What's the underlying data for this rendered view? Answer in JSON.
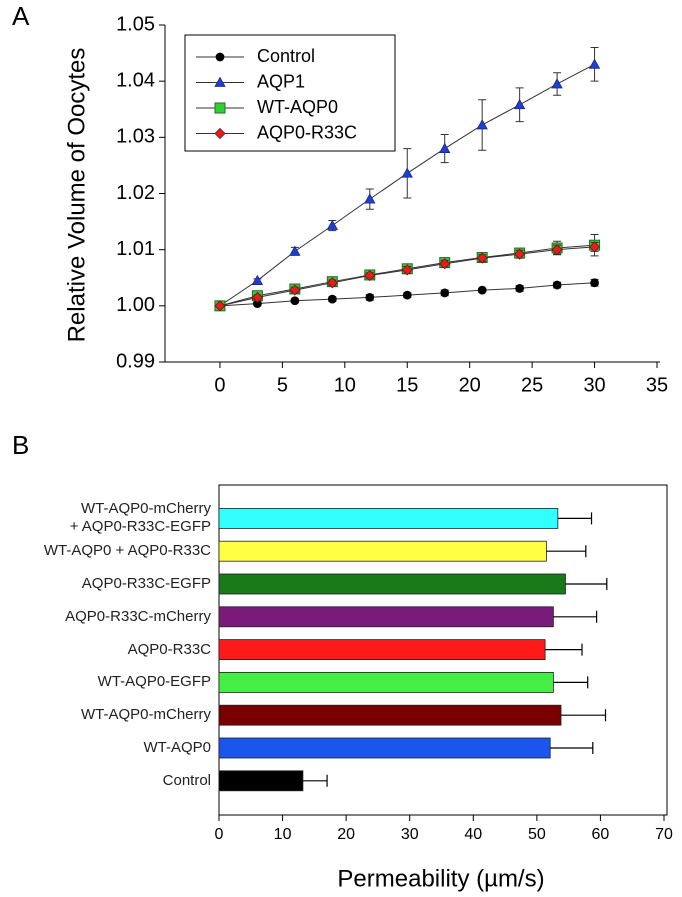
{
  "chart_data": [
    {
      "type": "line",
      "panel_label": "A",
      "ylabel": "Relative Volume of Oocytes",
      "x": [
        0,
        3,
        6,
        9,
        12,
        15,
        18,
        21,
        24,
        27,
        30
      ],
      "xlim": [
        -4.4,
        35
      ],
      "xticks": [
        0,
        5,
        10,
        15,
        20,
        25,
        30,
        35
      ],
      "ylim": [
        0.99,
        1.05
      ],
      "yticks": [
        0.99,
        {
          "value": 1.0,
          "label": "1.00"
        },
        1.01,
        1.02,
        1.03,
        1.04,
        1.05
      ],
      "legend": "upper left",
      "series": [
        {
          "name": "Control",
          "color": "#000000",
          "marker": "circle",
          "values": [
            1.0,
            1.0004,
            1.0009,
            1.0012,
            1.0015,
            1.0019,
            1.0023,
            1.0028,
            1.0031,
            1.0037,
            1.0041
          ],
          "errors": [
            0,
            0.0003,
            0.0003,
            0.0004,
            0.0005,
            0.0004,
            0.0005,
            0.0003,
            0.0005,
            0.0005,
            0.0006
          ]
        },
        {
          "name": "AQP1",
          "color": "#1f3fcf",
          "marker": "triangle",
          "values": [
            1.0,
            1.0045,
            1.0097,
            1.0143,
            1.019,
            1.0236,
            1.028,
            1.0322,
            1.0358,
            1.0395,
            1.043
          ],
          "errors": [
            0,
            0.0003,
            0.0007,
            0.0009,
            0.0018,
            0.0044,
            0.0025,
            0.0045,
            0.003,
            0.002,
            0.003
          ]
        },
        {
          "name": "WT-AQP0",
          "color": "#33cc33",
          "marker": "square",
          "values": [
            1.0,
            1.0018,
            1.003,
            1.0043,
            1.0055,
            1.0066,
            1.0077,
            1.0086,
            1.0094,
            1.0103,
            1.0108
          ],
          "errors": [
            0,
            0.0005,
            0.0005,
            0.0006,
            0.0006,
            0.0006,
            0.0007,
            0.0007,
            0.0008,
            0.0012,
            0.0019
          ]
        },
        {
          "name": "AQP0-R33C",
          "color": "#e02020",
          "marker": "diamond",
          "values": [
            1.0,
            1.0015,
            1.0028,
            1.0041,
            1.0054,
            1.0064,
            1.0075,
            1.0085,
            1.0092,
            1.01,
            1.0105
          ],
          "errors": [
            0,
            0.0004,
            0.0005,
            0.0005,
            0.0005,
            0.0006,
            0.0006,
            0.0006,
            0.0007,
            0.0008,
            0.0008
          ]
        }
      ]
    },
    {
      "type": "bar",
      "orientation": "horizontal",
      "panel_label": "B",
      "xlabel": "Permeability (µm/s)",
      "categories": [
        "WT-AQP0-mCherry\n+ AQP0-R33C-EGFP",
        "WT-AQP0 + AQP0-R33C",
        "AQP0-R33C-EGFP",
        "AQP0-R33C-mCherry",
        "AQP0-R33C",
        "WT-AQP0-EGFP",
        "WT-AQP0-mCherry",
        "WT-AQP0",
        "Control"
      ],
      "values": [
        53.3,
        51.5,
        54.5,
        52.6,
        51.3,
        52.6,
        53.8,
        52.1,
        13.2
      ],
      "errors": [
        5.3,
        6.2,
        6.5,
        6.8,
        5.8,
        5.4,
        7.0,
        6.7,
        3.8
      ],
      "colors": [
        "#33ffff",
        "#ffff44",
        "#1a7a1a",
        "#7a1a7a",
        "#ff1a1a",
        "#44ee44",
        "#7a0000",
        "#1a55ee",
        "#000000"
      ],
      "xlim": [
        0,
        70
      ],
      "xticks": [
        0,
        10,
        20,
        30,
        40,
        50,
        60,
        70
      ]
    }
  ]
}
